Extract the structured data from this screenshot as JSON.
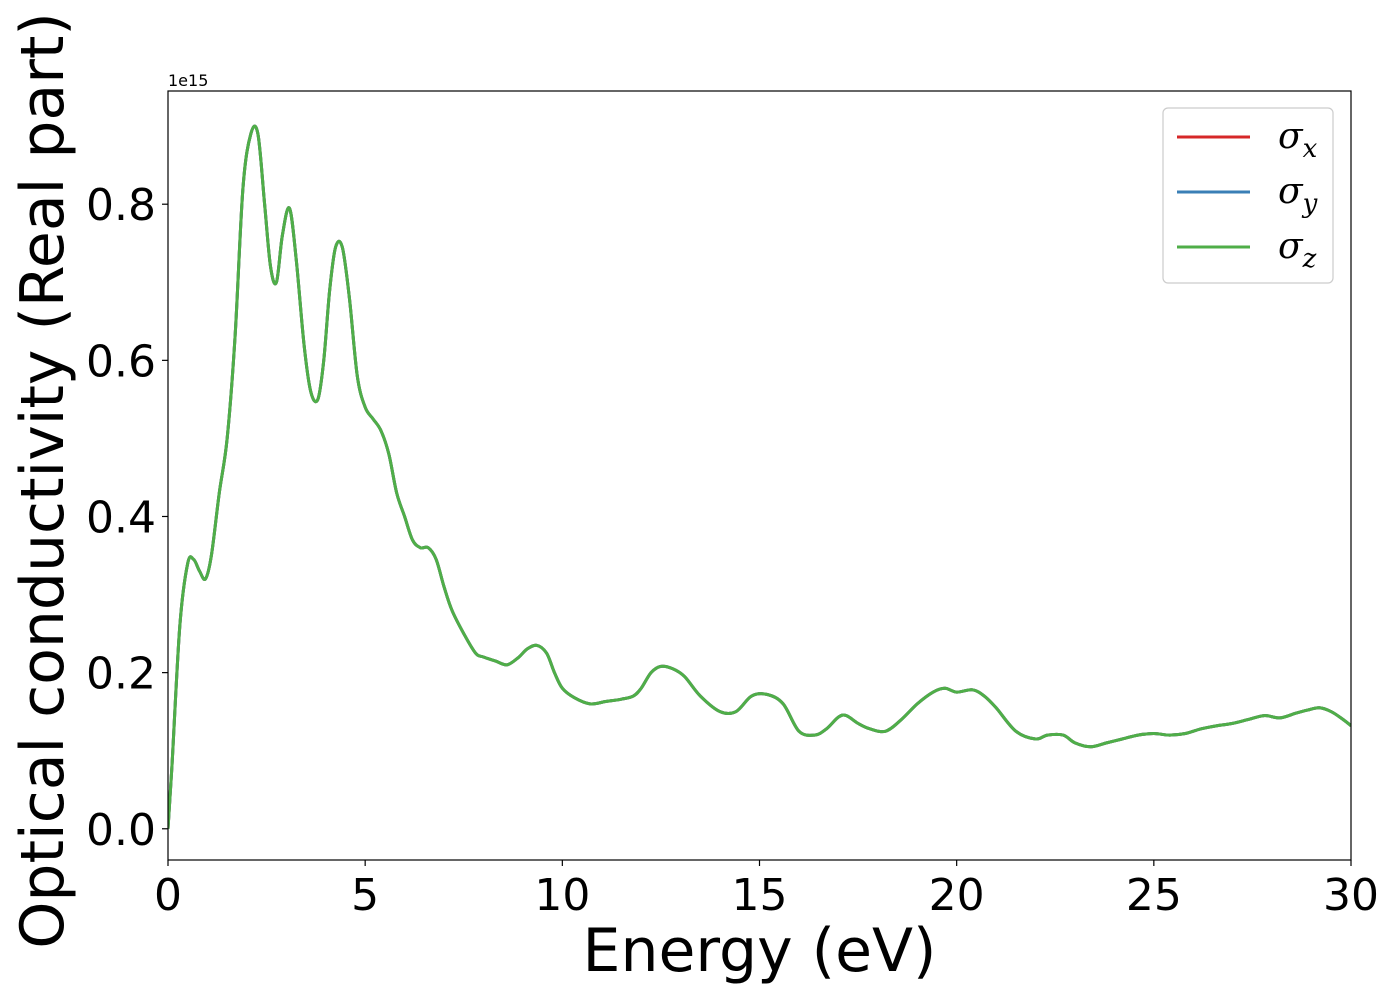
{
  "chart_data": {
    "type": "line",
    "title": "",
    "xlabel": "Energy (eV)",
    "ylabel": "Optical conductivity (Real part)",
    "y_offset_label": "1e15",
    "y_scale": 1000000000000000.0,
    "xlim": [
      0,
      30
    ],
    "ylim": [
      -0.04,
      0.945
    ],
    "x_ticks": [
      0,
      5,
      10,
      15,
      20,
      25,
      30
    ],
    "x_tick_labels": [
      "0",
      "5",
      "10",
      "15",
      "20",
      "25",
      "30"
    ],
    "y_ticks": [
      0.0,
      0.2,
      0.4,
      0.6,
      0.8
    ],
    "y_tick_labels": [
      "0.0",
      "0.2",
      "0.4",
      "0.6",
      "0.8"
    ],
    "grid": false,
    "legend_position": "top-right",
    "colors": {
      "sigma_x": "#d62728",
      "sigma_y": "#3a7fb6",
      "sigma_z": "#4fae48"
    },
    "series": [
      {
        "name": "σ",
        "sub": "x",
        "color_key": "sigma_x"
      },
      {
        "name": "σ",
        "sub": "y",
        "color_key": "sigma_y"
      },
      {
        "name": "σ",
        "sub": "z",
        "color_key": "sigma_z"
      }
    ],
    "x": [
      0,
      0.1,
      0.3,
      0.5,
      0.65,
      0.8,
      0.95,
      1.1,
      1.3,
      1.5,
      1.7,
      1.9,
      2.1,
      2.28,
      2.45,
      2.6,
      2.75,
      2.9,
      3.08,
      3.25,
      3.45,
      3.62,
      3.8,
      3.95,
      4.1,
      4.25,
      4.42,
      4.6,
      4.8,
      5.0,
      5.2,
      5.4,
      5.6,
      5.8,
      6.0,
      6.2,
      6.4,
      6.6,
      6.8,
      7.0,
      7.2,
      7.5,
      7.8,
      8.0,
      8.3,
      8.6,
      8.9,
      9.1,
      9.35,
      9.6,
      9.8,
      10.0,
      10.3,
      10.7,
      11.1,
      11.5,
      11.8,
      12.0,
      12.25,
      12.5,
      12.8,
      13.1,
      13.5,
      14.0,
      14.4,
      14.8,
      15.2,
      15.6,
      16.0,
      16.4,
      16.7,
      17.0,
      17.2,
      17.5,
      17.8,
      18.2,
      18.6,
      19.0,
      19.4,
      19.7,
      20.0,
      20.4,
      20.7,
      21.0,
      21.5,
      22.0,
      22.3,
      22.7,
      23.0,
      23.4,
      23.8,
      24.2,
      24.6,
      25.0,
      25.4,
      25.8,
      26.2,
      26.6,
      27.0,
      27.4,
      27.8,
      28.2,
      28.6,
      28.9,
      29.2,
      29.5,
      29.8,
      30.0
    ],
    "y": [
      0.0,
      0.08,
      0.26,
      0.34,
      0.345,
      0.33,
      0.32,
      0.35,
      0.43,
      0.5,
      0.63,
      0.82,
      0.89,
      0.89,
      0.8,
      0.72,
      0.7,
      0.76,
      0.795,
      0.73,
      0.62,
      0.56,
      0.55,
      0.6,
      0.69,
      0.745,
      0.745,
      0.68,
      0.58,
      0.54,
      0.525,
      0.51,
      0.48,
      0.43,
      0.4,
      0.37,
      0.36,
      0.36,
      0.345,
      0.31,
      0.28,
      0.25,
      0.225,
      0.22,
      0.215,
      0.21,
      0.22,
      0.23,
      0.235,
      0.225,
      0.2,
      0.18,
      0.168,
      0.16,
      0.163,
      0.166,
      0.17,
      0.18,
      0.2,
      0.208,
      0.205,
      0.195,
      0.17,
      0.15,
      0.15,
      0.17,
      0.172,
      0.16,
      0.125,
      0.12,
      0.128,
      0.143,
      0.145,
      0.135,
      0.128,
      0.125,
      0.14,
      0.16,
      0.175,
      0.18,
      0.175,
      0.178,
      0.17,
      0.155,
      0.125,
      0.115,
      0.12,
      0.12,
      0.11,
      0.105,
      0.11,
      0.115,
      0.12,
      0.122,
      0.12,
      0.122,
      0.128,
      0.132,
      0.135,
      0.14,
      0.145,
      0.142,
      0.148,
      0.152,
      0.155,
      0.15,
      0.14,
      0.132
    ]
  }
}
